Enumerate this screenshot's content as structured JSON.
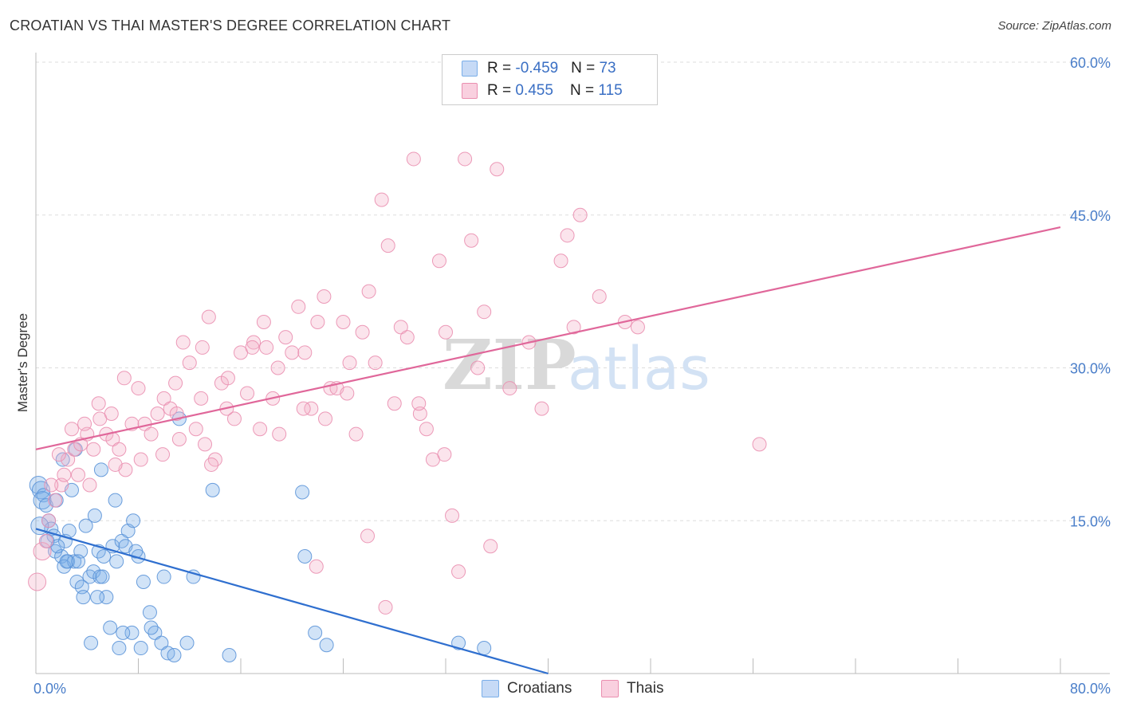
{
  "header": {
    "title": "CROATIAN VS THAI MASTER'S DEGREE CORRELATION CHART",
    "source": "Source: ZipAtlas.com"
  },
  "legend": {
    "rows": [
      {
        "r_label": "R = ",
        "r_value": "-0.459",
        "n_label": "N = ",
        "n_value": "73",
        "color": "#aecbf2"
      },
      {
        "r_label": "R = ",
        "r_value": "0.455",
        "n_label": "N = ",
        "n_value": "115",
        "color": "#f6bdd1"
      }
    ]
  },
  "bottom_legend": [
    "Croatians",
    "Thais"
  ],
  "watermark": {
    "zip": "ZIP",
    "atlas": "atlas"
  },
  "chart_data": {
    "type": "scatter",
    "title": "CROATIAN VS THAI MASTER'S DEGREE CORRELATION CHART",
    "ylabel": "Master's Degree",
    "xlabel": "",
    "xlim": [
      0,
      80
    ],
    "ylim": [
      0,
      60
    ],
    "x_tick_labels": [
      "0.0%",
      "80.0%"
    ],
    "y_tick_values": [
      15,
      30,
      45,
      60
    ],
    "y_tick_labels": [
      "15.0%",
      "30.0%",
      "45.0%",
      "60.0%"
    ],
    "grid": true,
    "legend_position": "top-center",
    "series": [
      {
        "name": "Croatians",
        "color": "#7aaee8",
        "stroke": "#5b93d8",
        "trend_color": "#2f6fcf",
        "trend": [
          [
            0,
            14.2
          ],
          [
            40,
            0
          ]
        ],
        "points": [
          [
            0.2,
            18.5
          ],
          [
            0.4,
            18.0
          ],
          [
            0.6,
            17.5
          ],
          [
            0.5,
            17.0
          ],
          [
            0.8,
            16.5
          ],
          [
            1.0,
            15.0
          ],
          [
            1.2,
            14.2
          ],
          [
            1.4,
            13.5
          ],
          [
            0.9,
            13.0
          ],
          [
            1.5,
            12.0
          ],
          [
            2.0,
            11.5
          ],
          [
            2.5,
            11.0
          ],
          [
            2.2,
            10.5
          ],
          [
            3.0,
            11.0
          ],
          [
            3.5,
            12.0
          ],
          [
            3.2,
            9.0
          ],
          [
            3.6,
            8.5
          ],
          [
            3.7,
            7.5
          ],
          [
            4.2,
            9.5
          ],
          [
            4.5,
            10.0
          ],
          [
            4.9,
            12.0
          ],
          [
            5.3,
            11.5
          ],
          [
            5.0,
            9.5
          ],
          [
            5.5,
            7.5
          ],
          [
            6.0,
            12.5
          ],
          [
            6.3,
            11.0
          ],
          [
            6.7,
            13.0
          ],
          [
            7.2,
            14.0
          ],
          [
            7.6,
            15.0
          ],
          [
            7.0,
            12.5
          ],
          [
            8.0,
            11.5
          ],
          [
            8.4,
            9.0
          ],
          [
            8.9,
            6.0
          ],
          [
            9.3,
            4.0
          ],
          [
            9.8,
            3.0
          ],
          [
            10.3,
            2.0
          ],
          [
            10.8,
            1.8
          ],
          [
            7.5,
            4.0
          ],
          [
            6.5,
            2.5
          ],
          [
            6.8,
            4.0
          ],
          [
            5.8,
            4.5
          ],
          [
            4.8,
            7.5
          ],
          [
            4.3,
            3.0
          ],
          [
            3.3,
            11.0
          ],
          [
            2.3,
            13.0
          ],
          [
            2.8,
            18.0
          ],
          [
            2.1,
            21.0
          ],
          [
            3.1,
            22.0
          ],
          [
            4.6,
            15.5
          ],
          [
            5.2,
            9.5
          ],
          [
            5.1,
            20.0
          ],
          [
            6.2,
            17.0
          ],
          [
            7.8,
            12.0
          ],
          [
            8.2,
            2.5
          ],
          [
            9.0,
            4.5
          ],
          [
            10.0,
            9.5
          ],
          [
            11.2,
            25.0
          ],
          [
            11.8,
            3.0
          ],
          [
            12.3,
            9.5
          ],
          [
            13.8,
            18.0
          ],
          [
            15.1,
            1.8
          ],
          [
            20.8,
            17.8
          ],
          [
            21.0,
            11.5
          ],
          [
            21.8,
            4.0
          ],
          [
            22.7,
            2.8
          ],
          [
            33.0,
            3.0
          ],
          [
            35.0,
            2.5
          ],
          [
            1.6,
            17.0
          ],
          [
            1.7,
            12.5
          ],
          [
            0.3,
            14.5
          ],
          [
            2.6,
            14.0
          ],
          [
            2.4,
            11.0
          ],
          [
            3.9,
            14.5
          ]
        ]
      },
      {
        "name": "Thais",
        "color": "#f3b3c9",
        "stroke": "#ea8fb0",
        "trend_color": "#e0679a",
        "trend": [
          [
            0,
            22.0
          ],
          [
            80,
            43.8
          ]
        ],
        "points": [
          [
            0.1,
            9.0
          ],
          [
            0.5,
            12.0
          ],
          [
            1.0,
            15.0
          ],
          [
            1.5,
            17.0
          ],
          [
            2.0,
            18.5
          ],
          [
            2.5,
            21.0
          ],
          [
            3.0,
            22.0
          ],
          [
            3.3,
            19.5
          ],
          [
            3.5,
            22.5
          ],
          [
            4.0,
            23.5
          ],
          [
            4.5,
            22.0
          ],
          [
            5.0,
            25.0
          ],
          [
            5.5,
            23.5
          ],
          [
            6.0,
            23.0
          ],
          [
            6.5,
            22.0
          ],
          [
            7.0,
            20.0
          ],
          [
            7.5,
            24.5
          ],
          [
            8.0,
            28.0
          ],
          [
            8.5,
            24.5
          ],
          [
            9.0,
            23.5
          ],
          [
            9.5,
            25.5
          ],
          [
            10.0,
            27.0
          ],
          [
            10.5,
            26.0
          ],
          [
            11.0,
            25.5
          ],
          [
            11.5,
            32.5
          ],
          [
            12.0,
            30.5
          ],
          [
            12.5,
            24.0
          ],
          [
            13.0,
            32.0
          ],
          [
            13.5,
            35.0
          ],
          [
            14.0,
            21.0
          ],
          [
            14.5,
            28.5
          ],
          [
            15.0,
            29.0
          ],
          [
            15.5,
            25.0
          ],
          [
            16.0,
            31.5
          ],
          [
            16.5,
            27.5
          ],
          [
            17.0,
            32.5
          ],
          [
            17.5,
            24.0
          ],
          [
            18.0,
            32.0
          ],
          [
            18.5,
            27.0
          ],
          [
            19.0,
            23.5
          ],
          [
            19.5,
            33.0
          ],
          [
            20.0,
            31.5
          ],
          [
            20.5,
            36.0
          ],
          [
            21.0,
            31.5
          ],
          [
            21.5,
            26.0
          ],
          [
            22.0,
            34.5
          ],
          [
            22.5,
            37.0
          ],
          [
            23.0,
            28.0
          ],
          [
            23.5,
            28.0
          ],
          [
            24.0,
            34.5
          ],
          [
            24.5,
            30.5
          ],
          [
            25.0,
            23.5
          ],
          [
            25.5,
            33.5
          ],
          [
            26.0,
            37.5
          ],
          [
            26.5,
            30.5
          ],
          [
            27.0,
            46.5
          ],
          [
            27.5,
            42.0
          ],
          [
            28.0,
            26.5
          ],
          [
            28.5,
            34.0
          ],
          [
            29.0,
            33.0
          ],
          [
            29.5,
            50.5
          ],
          [
            30.0,
            25.5
          ],
          [
            30.5,
            24.0
          ],
          [
            31.0,
            21.0
          ],
          [
            31.5,
            40.5
          ],
          [
            32.0,
            33.5
          ],
          [
            32.5,
            15.5
          ],
          [
            33.0,
            10.0
          ],
          [
            33.5,
            50.5
          ],
          [
            34.0,
            42.5
          ],
          [
            34.5,
            30.0
          ],
          [
            35.0,
            35.5
          ],
          [
            35.5,
            12.5
          ],
          [
            36.0,
            49.5
          ],
          [
            37.0,
            28.0
          ],
          [
            38.5,
            32.5
          ],
          [
            39.5,
            26.0
          ],
          [
            41.0,
            40.5
          ],
          [
            41.5,
            43.0
          ],
          [
            42.0,
            34.0
          ],
          [
            42.5,
            45.0
          ],
          [
            44.0,
            37.0
          ],
          [
            46.0,
            34.5
          ],
          [
            47.0,
            34.0
          ],
          [
            56.5,
            22.5
          ],
          [
            13.7,
            20.5
          ],
          [
            17.8,
            34.5
          ],
          [
            22.6,
            25.0
          ],
          [
            24.3,
            27.5
          ],
          [
            27.3,
            6.5
          ],
          [
            21.9,
            10.5
          ],
          [
            25.9,
            13.5
          ],
          [
            3.8,
            24.5
          ],
          [
            4.9,
            26.5
          ],
          [
            5.9,
            25.5
          ],
          [
            6.9,
            29.0
          ],
          [
            9.9,
            21.5
          ],
          [
            10.9,
            28.5
          ],
          [
            12.9,
            27.0
          ],
          [
            14.9,
            26.0
          ],
          [
            16.9,
            32.0
          ],
          [
            18.9,
            30.0
          ],
          [
            20.9,
            26.0
          ],
          [
            29.9,
            26.5
          ],
          [
            31.9,
            21.5
          ],
          [
            1.2,
            18.5
          ],
          [
            2.2,
            19.5
          ],
          [
            0.8,
            13.0
          ],
          [
            1.8,
            21.5
          ],
          [
            2.8,
            24.0
          ],
          [
            4.2,
            18.5
          ],
          [
            6.2,
            20.5
          ],
          [
            8.2,
            21.0
          ],
          [
            11.2,
            23.0
          ],
          [
            13.2,
            22.5
          ]
        ]
      }
    ]
  }
}
